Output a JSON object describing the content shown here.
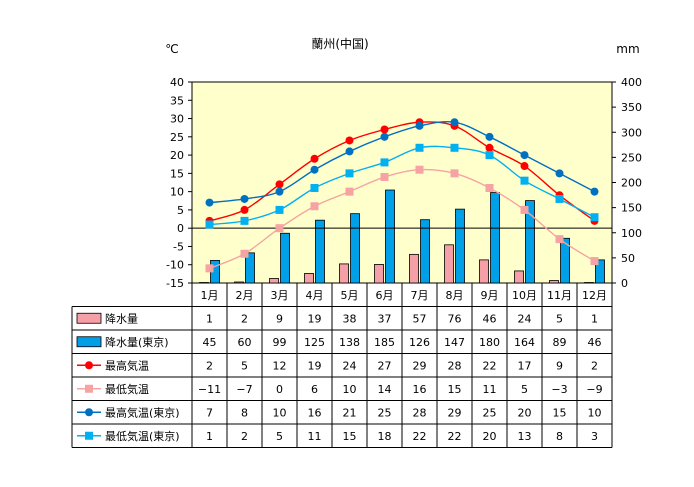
{
  "chart_data": {
    "type": "bar",
    "title": "蘭州(中国)",
    "left_axis_unit": "℃",
    "right_axis_unit": "mm",
    "categories": [
      "1月",
      "2月",
      "3月",
      "4月",
      "5月",
      "6月",
      "7月",
      "8月",
      "9月",
      "10月",
      "11月",
      "12月"
    ],
    "temperature_axis": {
      "ylim": [
        -15,
        40
      ],
      "ticks": [
        "40",
        "35",
        "30",
        "25",
        "20",
        "15",
        "10",
        "5",
        "0",
        "-5",
        "-10",
        "-15"
      ]
    },
    "precipitation_axis": {
      "ylim": [
        0,
        400
      ],
      "ticks": [
        "400",
        "350",
        "300",
        "250",
        "200",
        "150",
        "100",
        "50",
        "0"
      ]
    },
    "grid": false,
    "series": [
      {
        "name": "降水量",
        "kind": "bar",
        "axis": "precipitation",
        "color": "#f4a0a6",
        "values": [
          1,
          2,
          9,
          19,
          38,
          37,
          57,
          76,
          46,
          24,
          5,
          1
        ],
        "labels": [
          "1",
          "2",
          "9",
          "19",
          "38",
          "37",
          "57",
          "76",
          "46",
          "24",
          "5",
          "1"
        ]
      },
      {
        "name": "降水量(東京)",
        "kind": "bar",
        "axis": "precipitation",
        "color": "#00a0e9",
        "values": [
          45,
          60,
          99,
          125,
          138,
          185,
          126,
          147,
          180,
          164,
          89,
          46
        ],
        "labels": [
          "45",
          "60",
          "99",
          "125",
          "138",
          "185",
          "126",
          "147",
          "180",
          "164",
          "89",
          "46"
        ]
      },
      {
        "name": "最高気温",
        "kind": "line",
        "axis": "temperature",
        "color": "#ff0000",
        "marker": "circle",
        "values": [
          2,
          5,
          12,
          19,
          24,
          27,
          29,
          28,
          22,
          17,
          9,
          2
        ],
        "labels": [
          "2",
          "5",
          "12",
          "19",
          "24",
          "27",
          "29",
          "28",
          "22",
          "17",
          "9",
          "2"
        ]
      },
      {
        "name": "最低気温",
        "kind": "line",
        "axis": "temperature",
        "color": "#f5a3a3",
        "marker": "square",
        "values": [
          -11,
          -7,
          0,
          6,
          10,
          14,
          16,
          15,
          11,
          5,
          -3,
          -9
        ],
        "labels": [
          "−11",
          "−7",
          "0",
          "6",
          "10",
          "14",
          "16",
          "15",
          "11",
          "5",
          "−3",
          "−9"
        ]
      },
      {
        "name": "最高気温(東京)",
        "kind": "line",
        "axis": "temperature",
        "color": "#0070c0",
        "marker": "circle",
        "values": [
          7,
          8,
          10,
          16,
          21,
          25,
          28,
          29,
          25,
          20,
          15,
          10
        ],
        "labels": [
          "7",
          "8",
          "10",
          "16",
          "21",
          "25",
          "28",
          "29",
          "25",
          "20",
          "15",
          "10"
        ]
      },
      {
        "name": "最低気温(東京)",
        "kind": "line",
        "axis": "temperature",
        "color": "#00b0f0",
        "marker": "square",
        "values": [
          1,
          2,
          5,
          11,
          15,
          18,
          22,
          22,
          20,
          13,
          8,
          3
        ],
        "labels": [
          "1",
          "2",
          "5",
          "11",
          "15",
          "18",
          "22",
          "22",
          "20",
          "13",
          "8",
          "3"
        ]
      }
    ],
    "colors": {
      "plot_background": "#ffffcc",
      "zero_line": "#000000"
    }
  }
}
